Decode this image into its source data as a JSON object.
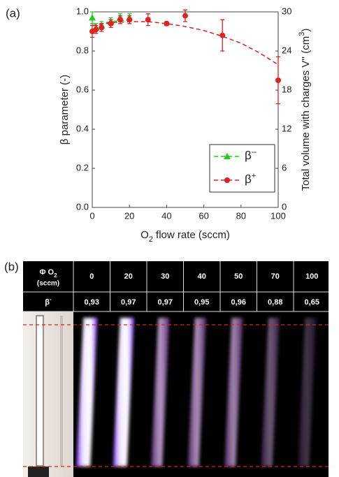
{
  "chart_data": {
    "type": "scatter",
    "panel_label": "(a)",
    "xlabel": [
      "O",
      "2",
      " flow rate (sccm)"
    ],
    "ylabel": "β parameter (-)",
    "y2label": [
      "Total volume with charges V'' (cm",
      "3",
      ")"
    ],
    "xlim": [
      0,
      100
    ],
    "xticks": [
      0,
      20,
      40,
      60,
      80,
      100
    ],
    "ylim": [
      0,
      1
    ],
    "yticks": [
      {
        "value": 0,
        "label": "0.0"
      },
      0.2,
      0.4,
      0.6,
      0.8,
      {
        "value": 1,
        "label": "1.0"
      }
    ],
    "y2lim": [
      0,
      30
    ],
    "y2ticks": [
      0,
      6,
      12,
      18,
      24,
      30
    ],
    "grid": false,
    "legend": "lower right",
    "series": [
      {
        "name": "β",
        "name_sup": "--",
        "color": "#22cc22",
        "marker": "triangle",
        "x": [
          0,
          2,
          5,
          10,
          15,
          20
        ],
        "values": [
          0.97,
          0.92,
          0.93,
          0.95,
          0.97,
          0.97
        ],
        "errors": [
          0.03,
          0.02,
          0.02,
          0.02,
          0.02,
          0.02
        ],
        "fit": {
          "x": [
            0,
            5,
            10,
            15,
            20
          ],
          "values": [
            0.93,
            0.94,
            0.95,
            0.955,
            0.96
          ]
        }
      },
      {
        "name": "β",
        "name_sup": "+",
        "color": "#dd2222",
        "marker": "circle",
        "x": [
          0,
          2,
          5,
          10,
          15,
          20,
          30,
          40,
          50,
          70,
          100
        ],
        "values": [
          0.9,
          0.91,
          0.92,
          0.94,
          0.96,
          0.96,
          0.96,
          0.94,
          0.98,
          0.88,
          0.65
        ],
        "errors": [
          0.03,
          0.02,
          0.02,
          0.02,
          0.02,
          0.02,
          0.03,
          0.01,
          0.03,
          0.08,
          0.12
        ],
        "fit": {
          "x": [
            0,
            10,
            20,
            30,
            40,
            50,
            60,
            70,
            80,
            90,
            100
          ],
          "values": [
            0.93,
            0.945,
            0.95,
            0.95,
            0.94,
            0.925,
            0.905,
            0.875,
            0.84,
            0.79,
            0.73
          ]
        }
      }
    ]
  },
  "panel_b": {
    "panel_label": "(b)",
    "header_label": [
      "Φ O",
      "2",
      "(sccm)"
    ],
    "flows": [
      "0",
      "20",
      "30",
      "40",
      "50",
      "70",
      "100"
    ],
    "beta_label": [
      "β",
      "-"
    ],
    "betas": [
      "0,93",
      "0,97",
      "0,97",
      "0,95",
      "0,96",
      "0,88",
      "0,65"
    ]
  }
}
